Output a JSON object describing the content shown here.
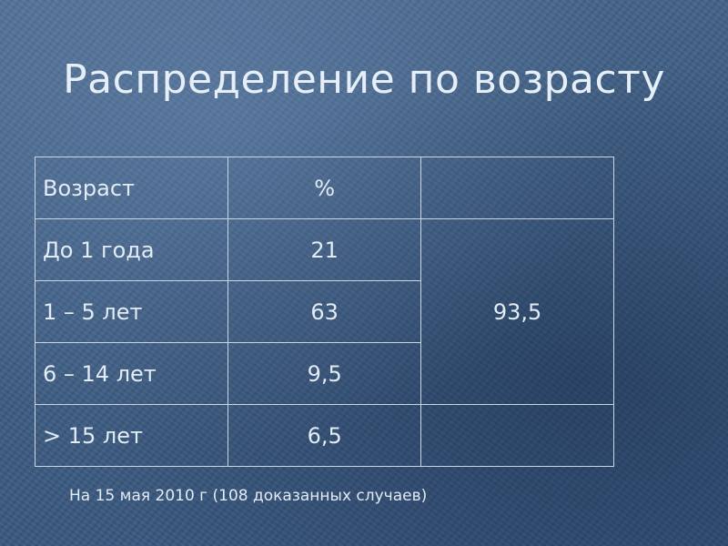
{
  "title": "Распределение по возрасту",
  "table": {
    "headers": [
      "Возраст",
      "%",
      ""
    ],
    "rows": [
      {
        "age": "До 1 года",
        "percent": "21"
      },
      {
        "age": "1 – 5 лет",
        "percent": "63"
      },
      {
        "age": "6 – 14 лет",
        "percent": "9,5"
      },
      {
        "age": "> 15  лет",
        "percent": "6,5"
      }
    ],
    "merged_total": "93,5"
  },
  "footnote": "На 15 мая 2010 г (108 доказанных случаев)",
  "colors": {
    "background": "#45668c",
    "text": "#e3ebf4",
    "border": "#c9d6e4"
  }
}
